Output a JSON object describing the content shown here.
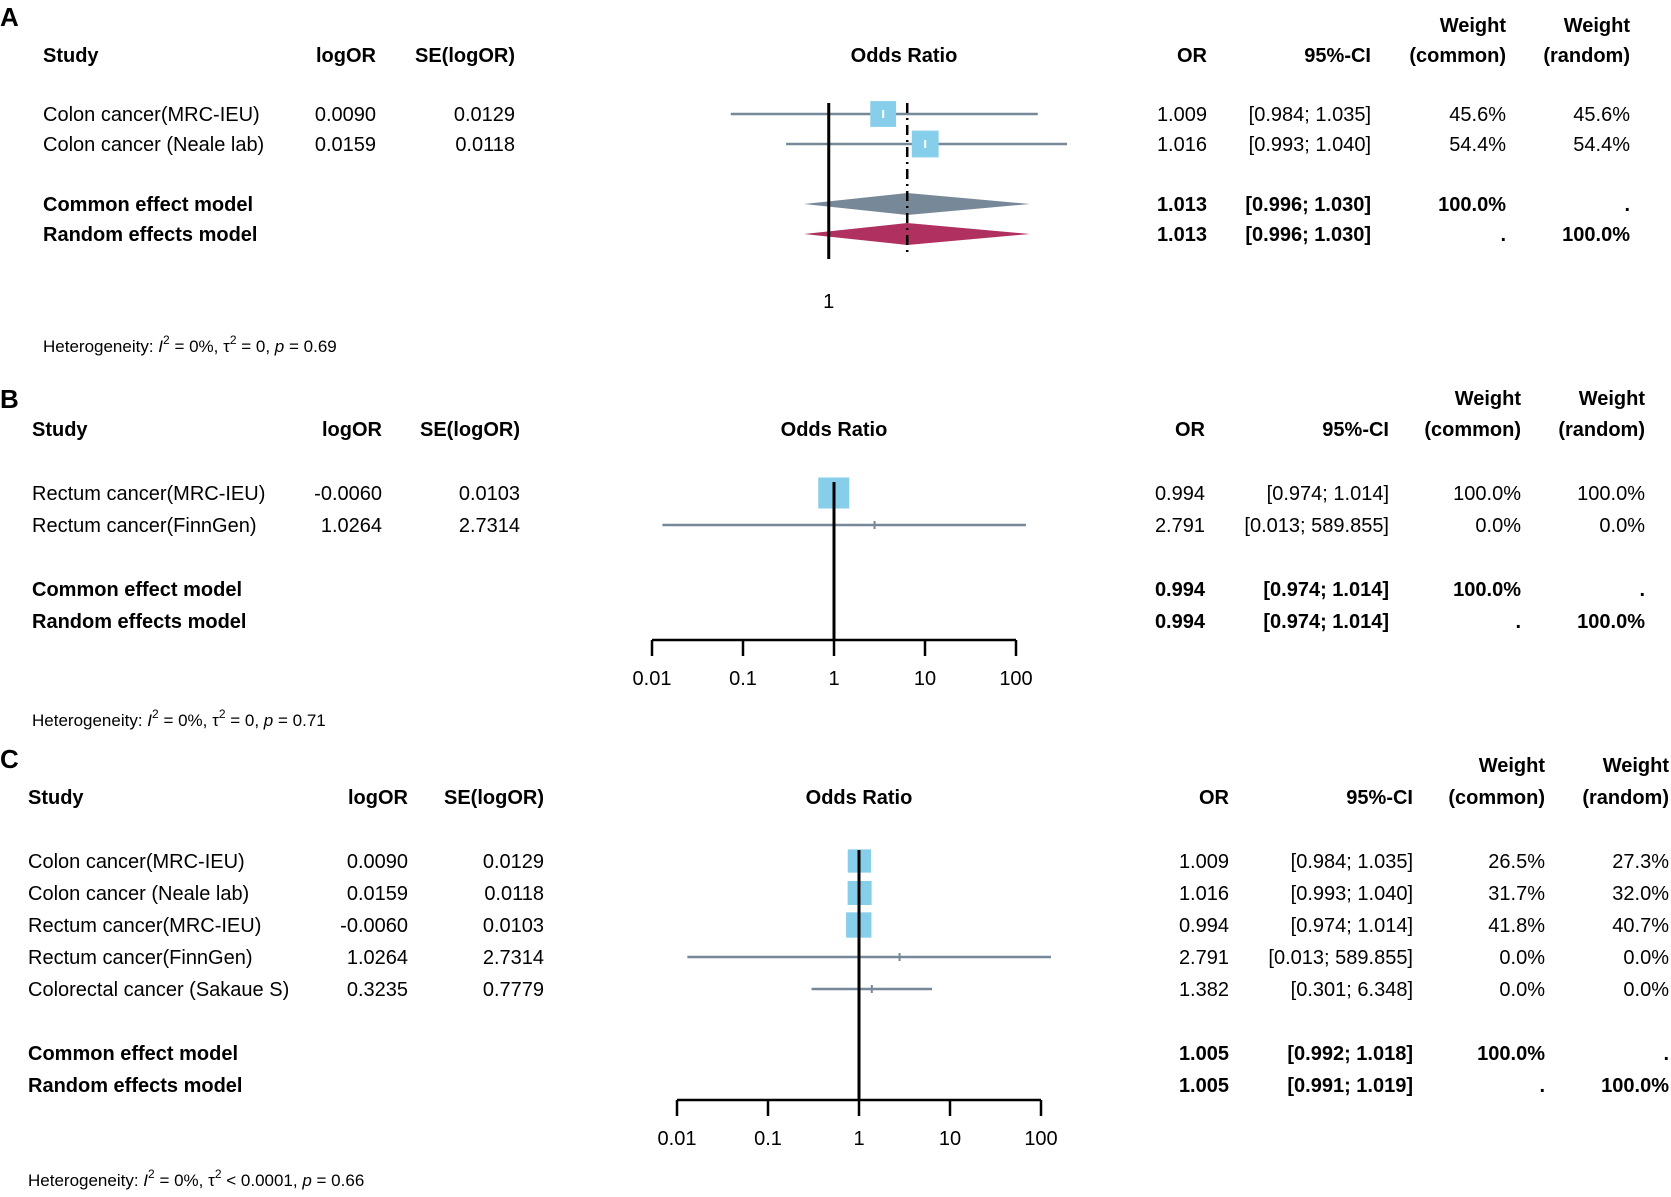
{
  "colors": {
    "square": "#87CEEB",
    "ci_line": "#778899",
    "common_diamond": "#778899",
    "random_diamond": "#B03060",
    "text": "#000000"
  },
  "chart_data": [
    {
      "type": "forest",
      "panel_label": "A",
      "xscale": "log",
      "xlim": [
        0.98,
        1.046
      ],
      "ref_line": 1,
      "summary_line": 1.013,
      "ticks": [
        1
      ],
      "tick_labels": [
        "1"
      ],
      "headers": {
        "study": "Study",
        "logor": "logOR",
        "se": "SE(logOR)",
        "plot": "Odds Ratio",
        "or": "OR",
        "ci": "95%-CI",
        "w1a": "Weight",
        "w1b": "(common)",
        "w2a": "Weight",
        "w2b": "(random)"
      },
      "studies": [
        {
          "name": "Colon cancer(MRC-IEU)",
          "logor": "0.0090",
          "se": "0.0129",
          "or_text": "1.009",
          "ci_text": "[0.984; 1.035]",
          "wc": "45.6%",
          "wr": "45.6%",
          "or": 1.009,
          "lo": 0.984,
          "hi": 1.035,
          "weight": 45.6
        },
        {
          "name": "Colon cancer (Neale lab)",
          "logor": "0.0159",
          "se": "0.0118",
          "or_text": "1.016",
          "ci_text": "[0.993; 1.040]",
          "wc": "54.4%",
          "wr": "54.4%",
          "or": 1.016,
          "lo": 0.993,
          "hi": 1.04,
          "weight": 54.4
        }
      ],
      "models": [
        {
          "name": "Common effect model",
          "or_text": "1.013",
          "ci_text": "[0.996; 1.030]",
          "wc": "100.0%",
          "wr": ".",
          "or": 1.013,
          "lo": 0.996,
          "hi": 1.03,
          "kind": "common"
        },
        {
          "name": "Random effects model",
          "or_text": "1.013",
          "ci_text": "[0.996; 1.030]",
          "wc": ".",
          "wr": "100.0%",
          "or": 1.013,
          "lo": 0.996,
          "hi": 1.03,
          "kind": "random"
        }
      ],
      "heterogeneity": {
        "prefix": "Heterogeneity: ",
        "i2": "I",
        "i2_val": " = 0%, ",
        "tau": "τ",
        "tau_val": " = 0, ",
        "p": "p",
        "p_val": " = 0.69"
      }
    },
    {
      "type": "forest",
      "panel_label": "B",
      "xscale": "log",
      "xlim": [
        0.01,
        100
      ],
      "ref_line": 1,
      "ticks": [
        0.01,
        0.1,
        1,
        10,
        100
      ],
      "tick_labels": [
        "0.01",
        "0.1",
        "1",
        "10",
        "100"
      ],
      "headers": {
        "study": "Study",
        "logor": "logOR",
        "se": "SE(logOR)",
        "plot": "Odds Ratio",
        "or": "OR",
        "ci": "95%-CI",
        "w1a": "Weight",
        "w1b": "(common)",
        "w2a": "Weight",
        "w2b": "(random)"
      },
      "studies": [
        {
          "name": "Rectum cancer(MRC-IEU)",
          "logor": "-0.0060",
          "se": "0.0103",
          "or_text": "0.994",
          "ci_text": "[0.974;   1.014]",
          "wc": "100.0%",
          "wr": "100.0%",
          "or": 0.994,
          "lo": 0.974,
          "hi": 1.014,
          "weight": 100.0
        },
        {
          "name": "Rectum cancer(FinnGen)",
          "logor": "1.0264",
          "se": "2.7314",
          "or_text": "2.791",
          "ci_text": "[0.013; 589.855]",
          "wc": "0.0%",
          "wr": "0.0%",
          "or": 2.791,
          "lo": 0.013,
          "hi": 589.855,
          "weight": 0.0
        }
      ],
      "models": [
        {
          "name": "Common effect model",
          "or_text": "0.994",
          "ci_text": "[0.974;   1.014]",
          "wc": "100.0%",
          "wr": ".",
          "or": 0.994,
          "lo": 0.974,
          "hi": 1.014,
          "kind": "common"
        },
        {
          "name": "Random effects model",
          "or_text": "0.994",
          "ci_text": "[0.974;   1.014]",
          "wc": ".",
          "wr": "100.0%",
          "or": 0.994,
          "lo": 0.974,
          "hi": 1.014,
          "kind": "random"
        }
      ],
      "heterogeneity": {
        "prefix": "Heterogeneity: ",
        "i2": "I",
        "i2_val": " = 0%, ",
        "tau": "τ",
        "tau_val": " = 0, ",
        "p": "p",
        "p_val": " = 0.71"
      }
    },
    {
      "type": "forest",
      "panel_label": "C",
      "xscale": "log",
      "xlim": [
        0.01,
        100
      ],
      "ref_line": 1,
      "ticks": [
        0.01,
        0.1,
        1,
        10,
        100
      ],
      "tick_labels": [
        "0.01",
        "0.1",
        "1",
        "10",
        "100"
      ],
      "headers": {
        "study": "Study",
        "logor": "logOR",
        "se": "SE(logOR)",
        "plot": "Odds Ratio",
        "or": "OR",
        "ci": "95%-CI",
        "w1a": "Weight",
        "w1b": "(common)",
        "w2a": "Weight",
        "w2b": "(random)"
      },
      "studies": [
        {
          "name": "Colon cancer(MRC-IEU)",
          "logor": "0.0090",
          "se": "0.0129",
          "or_text": "1.009",
          "ci_text": "[0.984;   1.035]",
          "wc": "26.5%",
          "wr": "27.3%",
          "or": 1.009,
          "lo": 0.984,
          "hi": 1.035,
          "weight": 26.5
        },
        {
          "name": "Colon cancer (Neale lab)",
          "logor": "0.0159",
          "se": "0.0118",
          "or_text": "1.016",
          "ci_text": "[0.993;   1.040]",
          "wc": "31.7%",
          "wr": "32.0%",
          "or": 1.016,
          "lo": 0.993,
          "hi": 1.04,
          "weight": 31.7
        },
        {
          "name": "Rectum cancer(MRC-IEU)",
          "logor": "-0.0060",
          "se": "0.0103",
          "or_text": "0.994",
          "ci_text": "[0.974;   1.014]",
          "wc": "41.8%",
          "wr": "40.7%",
          "or": 0.994,
          "lo": 0.974,
          "hi": 1.014,
          "weight": 41.8
        },
        {
          "name": "Rectum cancer(FinnGen)",
          "logor": "1.0264",
          "se": "2.7314",
          "or_text": "2.791",
          "ci_text": "[0.013; 589.855]",
          "wc": "0.0%",
          "wr": "0.0%",
          "or": 2.791,
          "lo": 0.013,
          "hi": 589.855,
          "weight": 0.0
        },
        {
          "name": "Colorectal cancer (Sakaue S)",
          "logor": "0.3235",
          "se": "0.7779",
          "or_text": "1.382",
          "ci_text": "[0.301;   6.348]",
          "wc": "0.0%",
          "wr": "0.0%",
          "or": 1.382,
          "lo": 0.301,
          "hi": 6.348,
          "weight": 0.0
        }
      ],
      "models": [
        {
          "name": "Common effect model",
          "or_text": "1.005",
          "ci_text": "[0.992;   1.018]",
          "wc": "100.0%",
          "wr": ".",
          "or": 1.005,
          "lo": 0.992,
          "hi": 1.018,
          "kind": "common"
        },
        {
          "name": "Random effects model",
          "or_text": "1.005",
          "ci_text": "[0.991;   1.019]",
          "wc": ".",
          "wr": "100.0%",
          "or": 1.005,
          "lo": 0.991,
          "hi": 1.019,
          "kind": "random"
        }
      ],
      "heterogeneity": {
        "prefix": "Heterogeneity: ",
        "i2": "I",
        "i2_val": " = 0%, ",
        "tau": "τ",
        "tau_val": " < 0.0001, ",
        "p": "p",
        "p_val": " = 0.66"
      }
    }
  ]
}
